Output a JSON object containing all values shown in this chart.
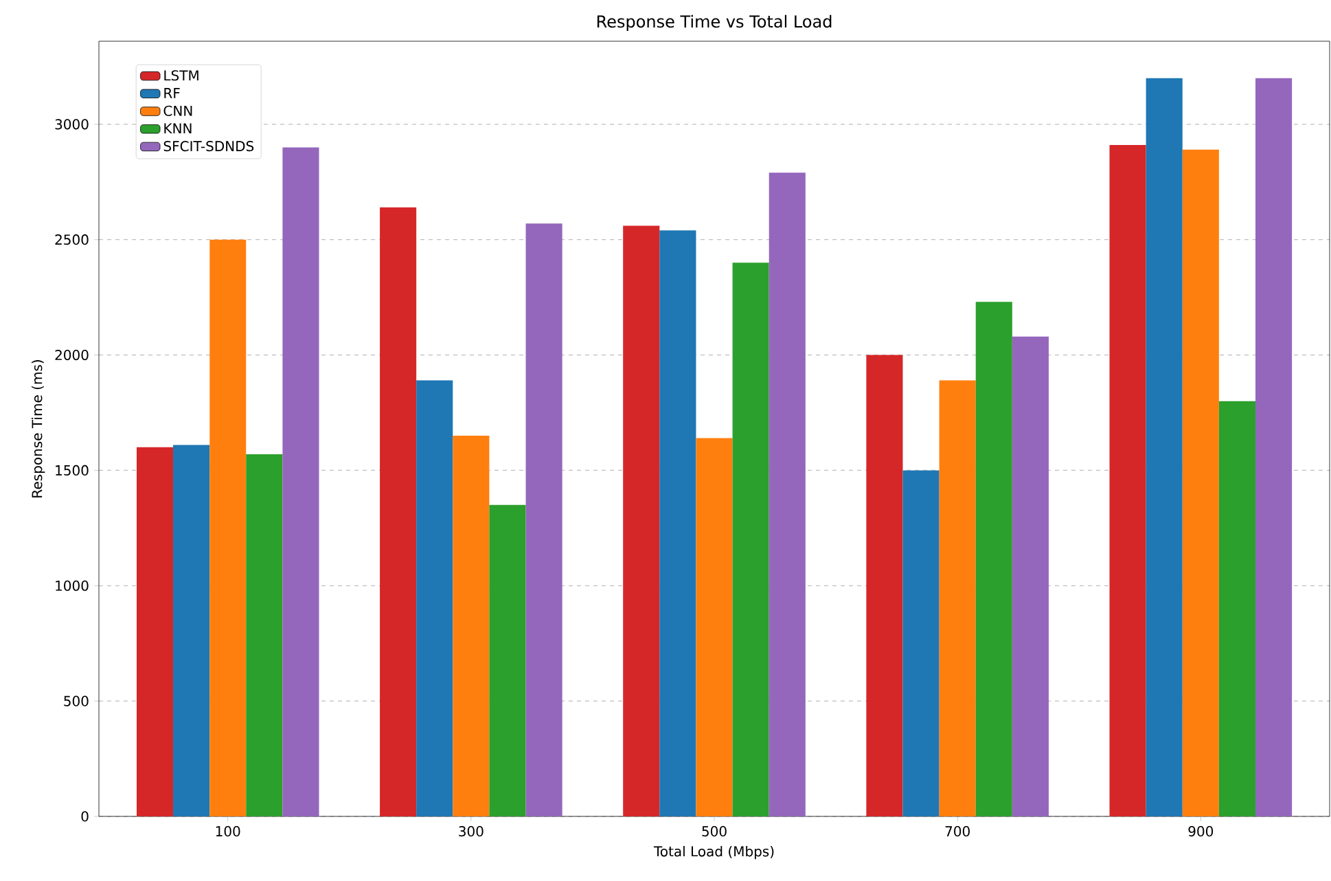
{
  "chart_data": {
    "type": "bar",
    "title": "Response Time vs Total Load",
    "xlabel": "Total Load (Mbps)",
    "ylabel": "Response Time (ms)",
    "categories": [
      "100",
      "300",
      "500",
      "700",
      "900"
    ],
    "series": [
      {
        "name": "LSTM",
        "color": "#d62728",
        "values": [
          1600,
          2640,
          2560,
          2000,
          2910
        ]
      },
      {
        "name": "RF",
        "color": "#1f77b4",
        "values": [
          1610,
          1890,
          2540,
          1500,
          3200
        ]
      },
      {
        "name": "CNN",
        "color": "#ff7f0e",
        "values": [
          2500,
          1650,
          1640,
          1890,
          2890
        ]
      },
      {
        "name": "KNN",
        "color": "#2ca02c",
        "values": [
          1570,
          1350,
          2400,
          2230,
          1800
        ]
      },
      {
        "name": "SFCIT-SDNDS",
        "color": "#9467bd",
        "values": [
          2900,
          2570,
          2790,
          2080,
          3200
        ]
      }
    ],
    "ylim": [
      0,
      3360
    ],
    "yticks": [
      0,
      500,
      1000,
      1500,
      2000,
      2500,
      3000
    ],
    "grid": "y",
    "legend": "top left"
  }
}
